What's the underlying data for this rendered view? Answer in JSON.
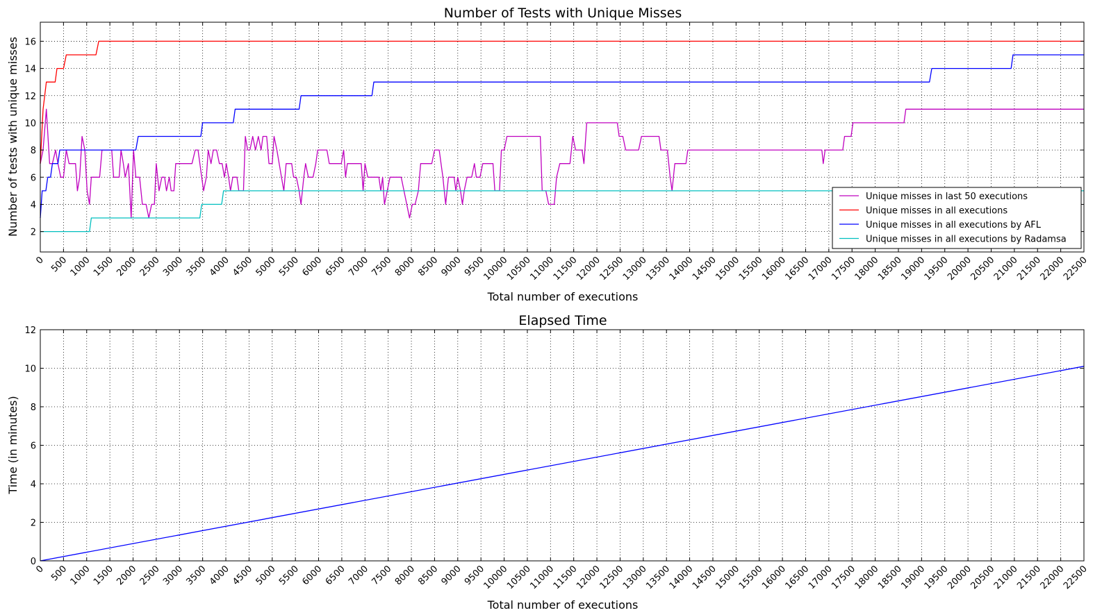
{
  "chart_data": [
    {
      "type": "line",
      "title": "Number of Tests with Unique Misses",
      "xlabel": "Total number of executions",
      "ylabel": "Number of tests with unique misses",
      "xlim": [
        0,
        22500
      ],
      "ylim": [
        0.5,
        17.4
      ],
      "xticks": [
        0,
        500,
        1000,
        1500,
        2000,
        2500,
        3000,
        3500,
        4000,
        4500,
        5000,
        5500,
        6000,
        6500,
        7000,
        7500,
        8000,
        8500,
        9000,
        9500,
        10000,
        10500,
        11000,
        11500,
        12000,
        12500,
        13000,
        13500,
        14000,
        14500,
        15000,
        15500,
        16000,
        16500,
        17000,
        17500,
        18000,
        18500,
        19000,
        19500,
        20000,
        20500,
        21000,
        21500,
        22000,
        22500
      ],
      "yticks": [
        2,
        4,
        6,
        8,
        10,
        12,
        14,
        16
      ],
      "grid": true,
      "legend_position": "lower-right",
      "series": [
        {
          "name": "Unique misses in last 50 executions",
          "color": "#bf00bf",
          "points": [
            [
              0,
              7
            ],
            [
              60,
              8
            ],
            [
              130,
              11
            ],
            [
              200,
              7
            ],
            [
              260,
              7
            ],
            [
              330,
              8
            ],
            [
              380,
              7
            ],
            [
              440,
              6
            ],
            [
              500,
              6
            ],
            [
              560,
              8
            ],
            [
              620,
              7
            ],
            [
              760,
              7
            ],
            [
              800,
              5
            ],
            [
              850,
              6
            ],
            [
              900,
              9
            ],
            [
              960,
              8
            ],
            [
              1010,
              5
            ],
            [
              1060,
              4
            ],
            [
              1100,
              6
            ],
            [
              1280,
              6
            ],
            [
              1330,
              8
            ],
            [
              1540,
              8
            ],
            [
              1580,
              6
            ],
            [
              1700,
              6
            ],
            [
              1740,
              8
            ],
            [
              1790,
              7
            ],
            [
              1830,
              6
            ],
            [
              1900,
              7
            ],
            [
              1960,
              3
            ],
            [
              2010,
              8
            ],
            [
              2060,
              6
            ],
            [
              2140,
              6
            ],
            [
              2200,
              4
            ],
            [
              2280,
              4
            ],
            [
              2340,
              3
            ],
            [
              2400,
              4
            ],
            [
              2460,
              4
            ],
            [
              2500,
              7
            ],
            [
              2560,
              5
            ],
            [
              2620,
              6
            ],
            [
              2680,
              6
            ],
            [
              2720,
              5
            ],
            [
              2780,
              6
            ],
            [
              2820,
              5
            ],
            [
              2880,
              5
            ],
            [
              2920,
              7
            ],
            [
              3270,
              7
            ],
            [
              3340,
              8
            ],
            [
              3400,
              8
            ],
            [
              3480,
              6
            ],
            [
              3520,
              5
            ],
            [
              3580,
              6
            ],
            [
              3620,
              8
            ],
            [
              3680,
              7
            ],
            [
              3730,
              8
            ],
            [
              3800,
              8
            ],
            [
              3860,
              7
            ],
            [
              3920,
              7
            ],
            [
              3970,
              6
            ],
            [
              4010,
              7
            ],
            [
              4060,
              6
            ],
            [
              4100,
              5
            ],
            [
              4150,
              6
            ],
            [
              4240,
              6
            ],
            [
              4280,
              5
            ],
            [
              4380,
              5
            ],
            [
              4420,
              9
            ],
            [
              4470,
              8
            ],
            [
              4520,
              8
            ],
            [
              4580,
              9
            ],
            [
              4640,
              8
            ],
            [
              4700,
              9
            ],
            [
              4760,
              8
            ],
            [
              4800,
              9
            ],
            [
              4880,
              9
            ],
            [
              4930,
              7
            ],
            [
              5000,
              7
            ],
            [
              5040,
              9
            ],
            [
              5100,
              8
            ],
            [
              5150,
              7
            ],
            [
              5200,
              6
            ],
            [
              5250,
              5
            ],
            [
              5300,
              7
            ],
            [
              5420,
              7
            ],
            [
              5460,
              6
            ],
            [
              5520,
              6
            ],
            [
              5580,
              5
            ],
            [
              5620,
              4
            ],
            [
              5680,
              6
            ],
            [
              5720,
              7
            ],
            [
              5780,
              6
            ],
            [
              5880,
              6
            ],
            [
              5940,
              7
            ],
            [
              5980,
              8
            ],
            [
              6180,
              8
            ],
            [
              6230,
              7
            ],
            [
              6490,
              7
            ],
            [
              6540,
              8
            ],
            [
              6580,
              6
            ],
            [
              6620,
              7
            ],
            [
              6920,
              7
            ],
            [
              6960,
              5
            ],
            [
              7000,
              7
            ],
            [
              7060,
              6
            ],
            [
              7300,
              6
            ],
            [
              7340,
              5
            ],
            [
              7380,
              6
            ],
            [
              7420,
              4
            ],
            [
              7480,
              5
            ],
            [
              7540,
              6
            ],
            [
              7780,
              6
            ],
            [
              7840,
              5
            ],
            [
              7900,
              4
            ],
            [
              7960,
              3
            ],
            [
              8020,
              4
            ],
            [
              8080,
              4
            ],
            [
              8150,
              5
            ],
            [
              8200,
              7
            ],
            [
              8440,
              7
            ],
            [
              8500,
              8
            ],
            [
              8600,
              8
            ],
            [
              8680,
              6
            ],
            [
              8740,
              4
            ],
            [
              8800,
              6
            ],
            [
              8920,
              6
            ],
            [
              8960,
              5
            ],
            [
              9000,
              6
            ],
            [
              9060,
              5
            ],
            [
              9100,
              4
            ],
            [
              9140,
              5
            ],
            [
              9200,
              6
            ],
            [
              9300,
              6
            ],
            [
              9360,
              7
            ],
            [
              9400,
              6
            ],
            [
              9480,
              6
            ],
            [
              9540,
              7
            ],
            [
              9760,
              7
            ],
            [
              9800,
              5
            ],
            [
              9900,
              5
            ],
            [
              9940,
              8
            ],
            [
              10000,
              8
            ],
            [
              10060,
              9
            ],
            [
              10780,
              9
            ],
            [
              10820,
              5
            ],
            [
              10900,
              5
            ],
            [
              10960,
              4
            ],
            [
              11080,
              4
            ],
            [
              11130,
              6
            ],
            [
              11200,
              7
            ],
            [
              11420,
              7
            ],
            [
              11480,
              9
            ],
            [
              11540,
              8
            ],
            [
              11680,
              8
            ],
            [
              11720,
              7
            ],
            [
              11780,
              10
            ],
            [
              12440,
              10
            ],
            [
              12480,
              9
            ],
            [
              12560,
              9
            ],
            [
              12620,
              8
            ],
            [
              12900,
              8
            ],
            [
              12960,
              9
            ],
            [
              13340,
              9
            ],
            [
              13380,
              8
            ],
            [
              13520,
              8
            ],
            [
              13580,
              6
            ],
            [
              13620,
              5
            ],
            [
              13680,
              7
            ],
            [
              13920,
              7
            ],
            [
              13960,
              8
            ],
            [
              16850,
              8
            ],
            [
              16880,
              7
            ],
            [
              16920,
              8
            ],
            [
              17300,
              8
            ],
            [
              17340,
              9
            ],
            [
              17480,
              9
            ],
            [
              17520,
              10
            ],
            [
              18620,
              10
            ],
            [
              18660,
              11
            ],
            [
              22500,
              11
            ]
          ]
        },
        {
          "name": "Unique misses in all executions",
          "color": "#ff0000",
          "points": [
            [
              0,
              7
            ],
            [
              60,
              11
            ],
            [
              130,
              13
            ],
            [
              320,
              13
            ],
            [
              360,
              14
            ],
            [
              500,
              14
            ],
            [
              560,
              15
            ],
            [
              1200,
              15
            ],
            [
              1260,
              16
            ],
            [
              22500,
              16
            ]
          ]
        },
        {
          "name": "Unique misses in all executions by AFL",
          "color": "#0000ff",
          "points": [
            [
              0,
              3
            ],
            [
              40,
              5
            ],
            [
              120,
              5
            ],
            [
              160,
              6
            ],
            [
              220,
              6
            ],
            [
              260,
              7
            ],
            [
              380,
              7
            ],
            [
              420,
              8
            ],
            [
              2060,
              8
            ],
            [
              2110,
              9
            ],
            [
              3460,
              9
            ],
            [
              3500,
              10
            ],
            [
              4160,
              10
            ],
            [
              4200,
              11
            ],
            [
              5580,
              11
            ],
            [
              5620,
              12
            ],
            [
              7150,
              12
            ],
            [
              7190,
              13
            ],
            [
              19170,
              13
            ],
            [
              19220,
              14
            ],
            [
              20930,
              14
            ],
            [
              20970,
              15
            ],
            [
              22500,
              15
            ]
          ]
        },
        {
          "name": "Unique misses in all executions by Radamsa",
          "color": "#00bfbf",
          "points": [
            [
              0,
              2
            ],
            [
              1060,
              2
            ],
            [
              1100,
              3
            ],
            [
              3440,
              3
            ],
            [
              3480,
              4
            ],
            [
              3910,
              4
            ],
            [
              3950,
              5
            ],
            [
              22500,
              5
            ]
          ]
        }
      ]
    },
    {
      "type": "line",
      "title": "Elapsed Time",
      "xlabel": "Total number of executions",
      "ylabel": "Time (in minutes)",
      "xlim": [
        0,
        22500
      ],
      "ylim": [
        0,
        12
      ],
      "xticks": [
        0,
        500,
        1000,
        1500,
        2000,
        2500,
        3000,
        3500,
        4000,
        4500,
        5000,
        5500,
        6000,
        6500,
        7000,
        7500,
        8000,
        8500,
        9000,
        9500,
        10000,
        10500,
        11000,
        11500,
        12000,
        12500,
        13000,
        13500,
        14000,
        14500,
        15000,
        15500,
        16000,
        16500,
        17000,
        17500,
        18000,
        18500,
        19000,
        19500,
        20000,
        20500,
        21000,
        21500,
        22000,
        22500
      ],
      "yticks": [
        0,
        2,
        4,
        6,
        8,
        10,
        12
      ],
      "grid": true,
      "series": [
        {
          "color": "#0000ff",
          "points": [
            [
              0,
              0
            ],
            [
              22500,
              10.1
            ]
          ]
        }
      ]
    }
  ]
}
